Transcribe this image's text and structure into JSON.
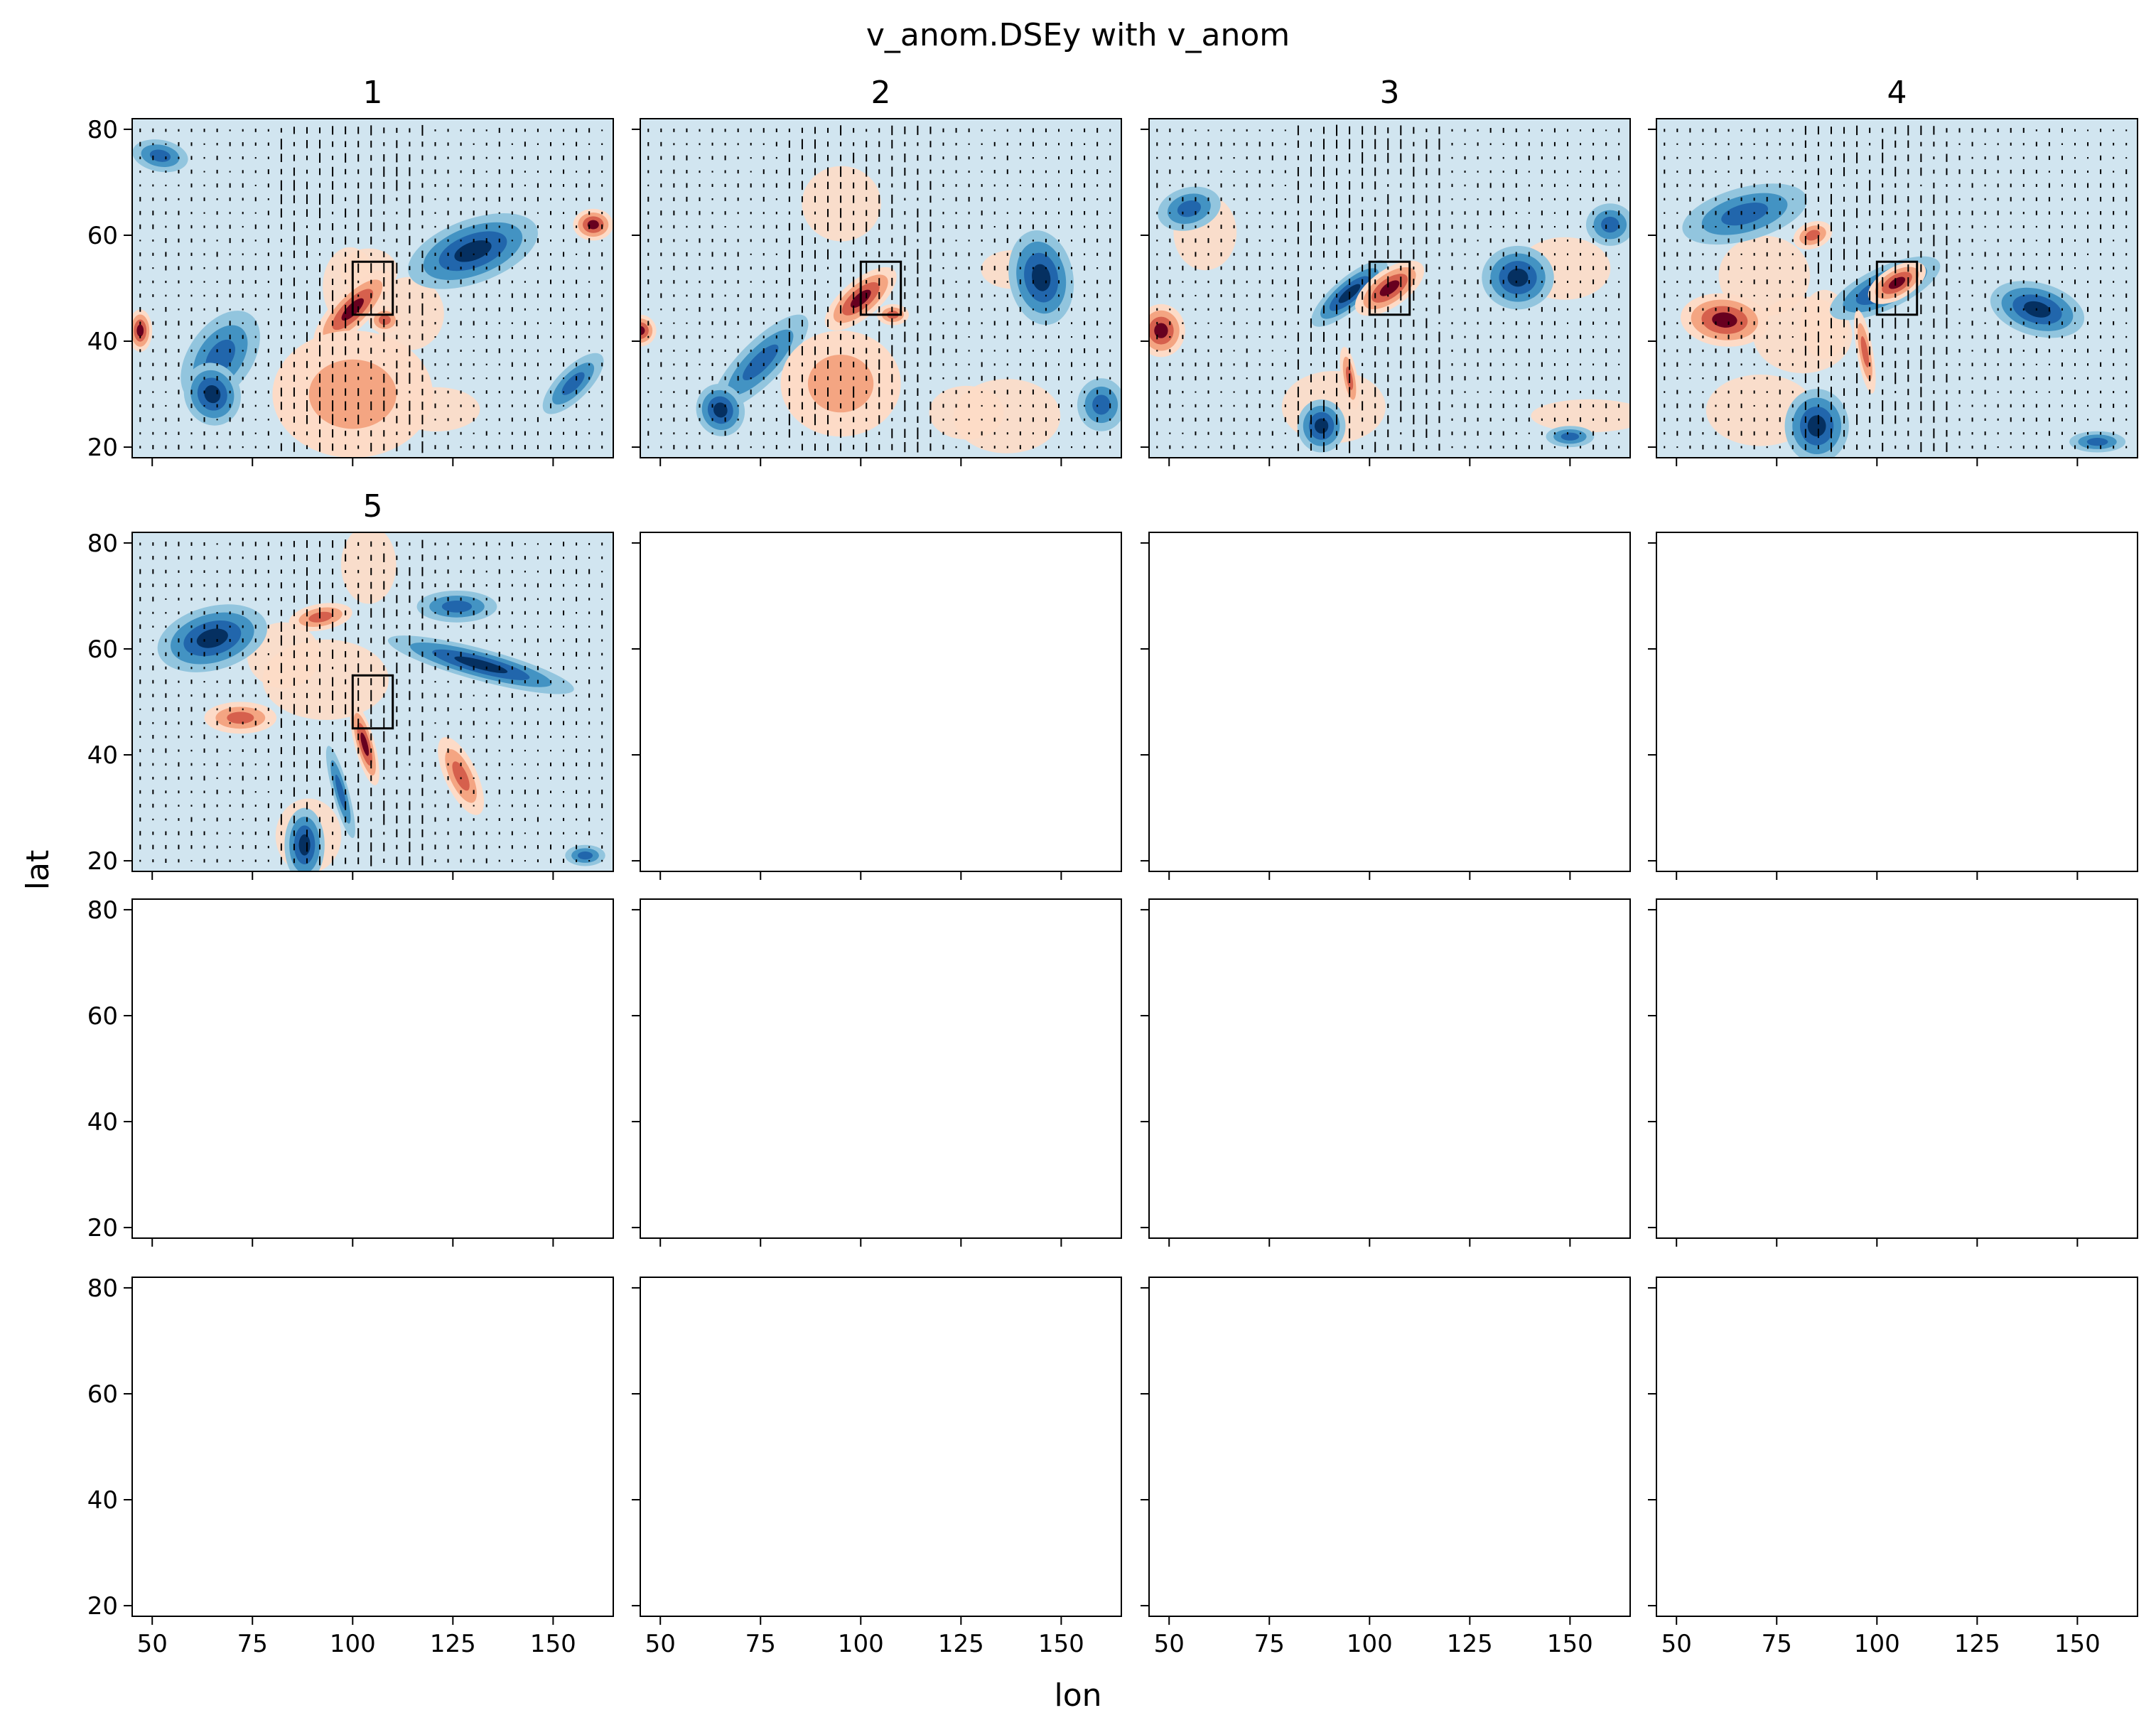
{
  "chart_data": {
    "type": "heatmap",
    "title": "v_anom.DSEy with v_anom",
    "xlabel": "lon",
    "ylabel": "lat",
    "grid": false,
    "legend": "none",
    "layout": {
      "rows": 4,
      "cols": 4
    },
    "xlim": [
      45,
      165
    ],
    "ylim": [
      18,
      82
    ],
    "xticks": [
      50,
      75,
      100,
      125,
      150
    ],
    "yticks": [
      20,
      40,
      60,
      80
    ],
    "colormap": [
      "#053061",
      "#2166ac",
      "#4393c3",
      "#92c5de",
      "#d1e5f0",
      "#fddbc7",
      "#f4a582",
      "#d6604d",
      "#b2182b",
      "#67001f"
    ],
    "box": {
      "lon": [
        100,
        110
      ],
      "lat": [
        45,
        55
      ]
    },
    "panels": [
      {
        "title": "1",
        "contours": [
          {
            "kind": "neg",
            "level": 2,
            "lon": 67,
            "lat": 37,
            "rx": 13,
            "ry": 6,
            "angle": 55
          },
          {
            "kind": "neg",
            "level": 3,
            "lon": 65,
            "lat": 30,
            "rx": 7,
            "ry": 6,
            "angle": 20
          },
          {
            "kind": "pos",
            "level": 3,
            "lon": 100,
            "lat": 46,
            "rx": 13,
            "ry": 3.5,
            "angle": 45
          },
          {
            "kind": "pos",
            "level": 2,
            "lon": 108,
            "lat": 44,
            "rx": 4,
            "ry": 2.5,
            "angle": 0
          },
          {
            "kind": "neg",
            "level": 3,
            "lon": 130,
            "lat": 57,
            "rx": 17,
            "ry": 6,
            "angle": 20
          },
          {
            "kind": "pos",
            "level": 3,
            "lon": 160,
            "lat": 62,
            "rx": 5,
            "ry": 3,
            "angle": 0
          },
          {
            "kind": "neg",
            "level": 2,
            "lon": 155,
            "lat": 32,
            "rx": 10,
            "ry": 3,
            "angle": 45
          },
          {
            "kind": "pos",
            "level": 3,
            "lon": 47,
            "lat": 42,
            "rx": 3,
            "ry": 4,
            "angle": 0
          },
          {
            "kind": "neg",
            "level": 2,
            "lon": 52,
            "lat": 75,
            "rx": 7,
            "ry": 3,
            "angle": -10
          },
          {
            "kind": "pos",
            "level": 1,
            "lon": 100,
            "lat": 30,
            "rx": 20,
            "ry": 12,
            "angle": 0
          }
        ]
      },
      {
        "title": "2",
        "contours": [
          {
            "kind": "neg",
            "level": 2,
            "lon": 75,
            "lat": 36,
            "rx": 16,
            "ry": 4,
            "angle": 45
          },
          {
            "kind": "neg",
            "level": 3,
            "lon": 65,
            "lat": 27,
            "rx": 6,
            "ry": 5,
            "angle": 20
          },
          {
            "kind": "pos",
            "level": 3,
            "lon": 100,
            "lat": 48,
            "rx": 11,
            "ry": 3.5,
            "angle": 40
          },
          {
            "kind": "pos",
            "level": 2,
            "lon": 108,
            "lat": 45,
            "rx": 4,
            "ry": 2,
            "angle": 0
          },
          {
            "kind": "neg",
            "level": 3,
            "lon": 145,
            "lat": 52,
            "rx": 8,
            "ry": 9,
            "angle": 10
          },
          {
            "kind": "pos",
            "level": 3,
            "lon": 45,
            "lat": 42,
            "rx": 4,
            "ry": 3,
            "angle": 0
          },
          {
            "kind": "neg",
            "level": 2,
            "lon": 160,
            "lat": 28,
            "rx": 6,
            "ry": 5,
            "angle": 0
          },
          {
            "kind": "pos",
            "level": 1,
            "lon": 95,
            "lat": 32,
            "rx": 15,
            "ry": 10,
            "angle": 0
          }
        ]
      },
      {
        "title": "3",
        "contours": [
          {
            "kind": "pos",
            "level": 3,
            "lon": 48,
            "lat": 42,
            "rx": 6,
            "ry": 5,
            "angle": 0
          },
          {
            "kind": "neg",
            "level": 2,
            "lon": 55,
            "lat": 65,
            "rx": 8,
            "ry": 4,
            "angle": 15
          },
          {
            "kind": "neg",
            "level": 3,
            "lon": 95,
            "lat": 49,
            "rx": 12,
            "ry": 3,
            "angle": 40
          },
          {
            "kind": "pos",
            "level": 3,
            "lon": 105,
            "lat": 50,
            "rx": 10,
            "ry": 3.5,
            "angle": 35
          },
          {
            "kind": "neg",
            "level": 3,
            "lon": 137,
            "lat": 52,
            "rx": 9,
            "ry": 6,
            "angle": 0
          },
          {
            "kind": "neg",
            "level": 3,
            "lon": 88,
            "lat": 24,
            "rx": 6,
            "ry": 5,
            "angle": 0
          },
          {
            "kind": "pos",
            "level": 2,
            "lon": 95,
            "lat": 33,
            "rx": 2,
            "ry": 6,
            "angle": 10
          },
          {
            "kind": "neg",
            "level": 2,
            "lon": 160,
            "lat": 62,
            "rx": 6,
            "ry": 4,
            "angle": 0
          },
          {
            "kind": "neg",
            "level": 2,
            "lon": 150,
            "lat": 22,
            "rx": 6,
            "ry": 2,
            "angle": 0
          }
        ]
      },
      {
        "title": "4",
        "contours": [
          {
            "kind": "neg",
            "level": 2,
            "lon": 67,
            "lat": 64,
            "rx": 16,
            "ry": 5,
            "angle": 15
          },
          {
            "kind": "pos",
            "level": 3,
            "lon": 62,
            "lat": 44,
            "rx": 11,
            "ry": 5,
            "angle": -5
          },
          {
            "kind": "pos",
            "level": 2,
            "lon": 84,
            "lat": 60,
            "rx": 5,
            "ry": 2.5,
            "angle": 20
          },
          {
            "kind": "neg",
            "level": 3,
            "lon": 102,
            "lat": 50,
            "rx": 15,
            "ry": 4,
            "angle": 25
          },
          {
            "kind": "pos",
            "level": 3,
            "lon": 105,
            "lat": 51,
            "rx": 8,
            "ry": 3,
            "angle": 30
          },
          {
            "kind": "neg",
            "level": 3,
            "lon": 140,
            "lat": 46,
            "rx": 12,
            "ry": 5,
            "angle": -15
          },
          {
            "kind": "neg",
            "level": 3,
            "lon": 85,
            "lat": 24,
            "rx": 8,
            "ry": 7,
            "angle": 0
          },
          {
            "kind": "pos",
            "level": 2,
            "lon": 97,
            "lat": 38,
            "rx": 2,
            "ry": 8,
            "angle": 10
          },
          {
            "kind": "neg",
            "level": 2,
            "lon": 155,
            "lat": 21,
            "rx": 7,
            "ry": 2,
            "angle": 0
          }
        ]
      },
      {
        "title": "5",
        "contours": [
          {
            "kind": "neg",
            "level": 3,
            "lon": 65,
            "lat": 62,
            "rx": 14,
            "ry": 6,
            "angle": 15
          },
          {
            "kind": "pos",
            "level": 2,
            "lon": 72,
            "lat": 47,
            "rx": 9,
            "ry": 3,
            "angle": 0
          },
          {
            "kind": "pos",
            "level": 2,
            "lon": 92,
            "lat": 66,
            "rx": 8,
            "ry": 2.5,
            "angle": 10
          },
          {
            "kind": "neg",
            "level": 3,
            "lon": 132,
            "lat": 57,
            "rx": 24,
            "ry": 3,
            "angle": -15
          },
          {
            "kind": "neg",
            "level": 2,
            "lon": 126,
            "lat": 68,
            "rx": 10,
            "ry": 3,
            "angle": 0
          },
          {
            "kind": "pos",
            "level": 3,
            "lon": 103,
            "lat": 42,
            "rx": 2.5,
            "ry": 8,
            "angle": 15
          },
          {
            "kind": "neg",
            "level": 3,
            "lon": 88,
            "lat": 23,
            "rx": 5,
            "ry": 7,
            "angle": 0
          },
          {
            "kind": "neg",
            "level": 2,
            "lon": 97,
            "lat": 33,
            "rx": 2,
            "ry": 9,
            "angle": 15
          },
          {
            "kind": "pos",
            "level": 2,
            "lon": 127,
            "lat": 36,
            "rx": 4,
            "ry": 8,
            "angle": 25
          },
          {
            "kind": "neg",
            "level": 2,
            "lon": 158,
            "lat": 21,
            "rx": 5,
            "ry": 2,
            "angle": 0
          }
        ]
      }
    ]
  }
}
